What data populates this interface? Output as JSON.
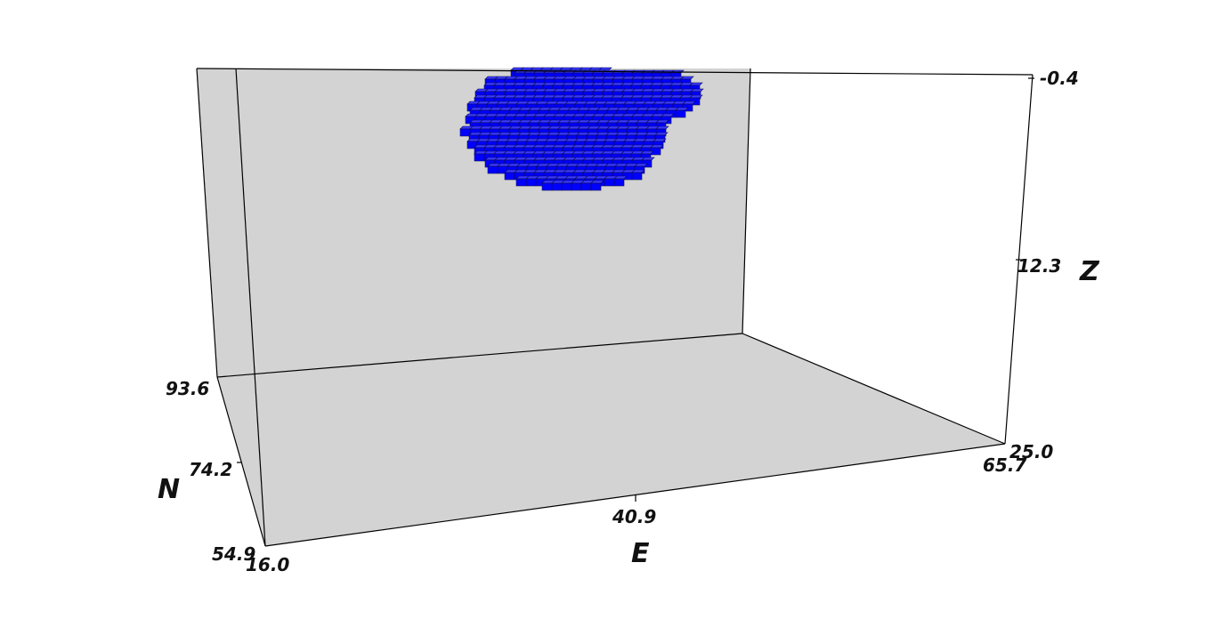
{
  "chart_data": {
    "type": "scatter",
    "subtype": "3d-voxel-block-model",
    "title": "",
    "axes": {
      "x": {
        "label": "E",
        "ticks": [
          "16.0",
          "40.9",
          "65.7"
        ],
        "range": [
          16.0,
          65.7
        ]
      },
      "y": {
        "label": "N",
        "ticks": [
          "54.9",
          "74.2",
          "93.6"
        ],
        "range": [
          54.9,
          93.6
        ]
      },
      "z": {
        "label": "Z",
        "ticks": [
          "-0.4",
          "12.3",
          "25.0"
        ],
        "range": [
          -0.4,
          25.0
        ],
        "inverted": true
      }
    },
    "grid": false,
    "pane_color": "#d3d3d3",
    "series": [
      {
        "color": "#0000ff",
        "note_edge_color": "#0a0a55",
        "voxel_cluster": {
          "e_range": [
            28.5,
            54.0
          ],
          "n_range": [
            74.0,
            93.6
          ],
          "z_range": [
            -0.4,
            6.5
          ]
        }
      }
    ]
  }
}
